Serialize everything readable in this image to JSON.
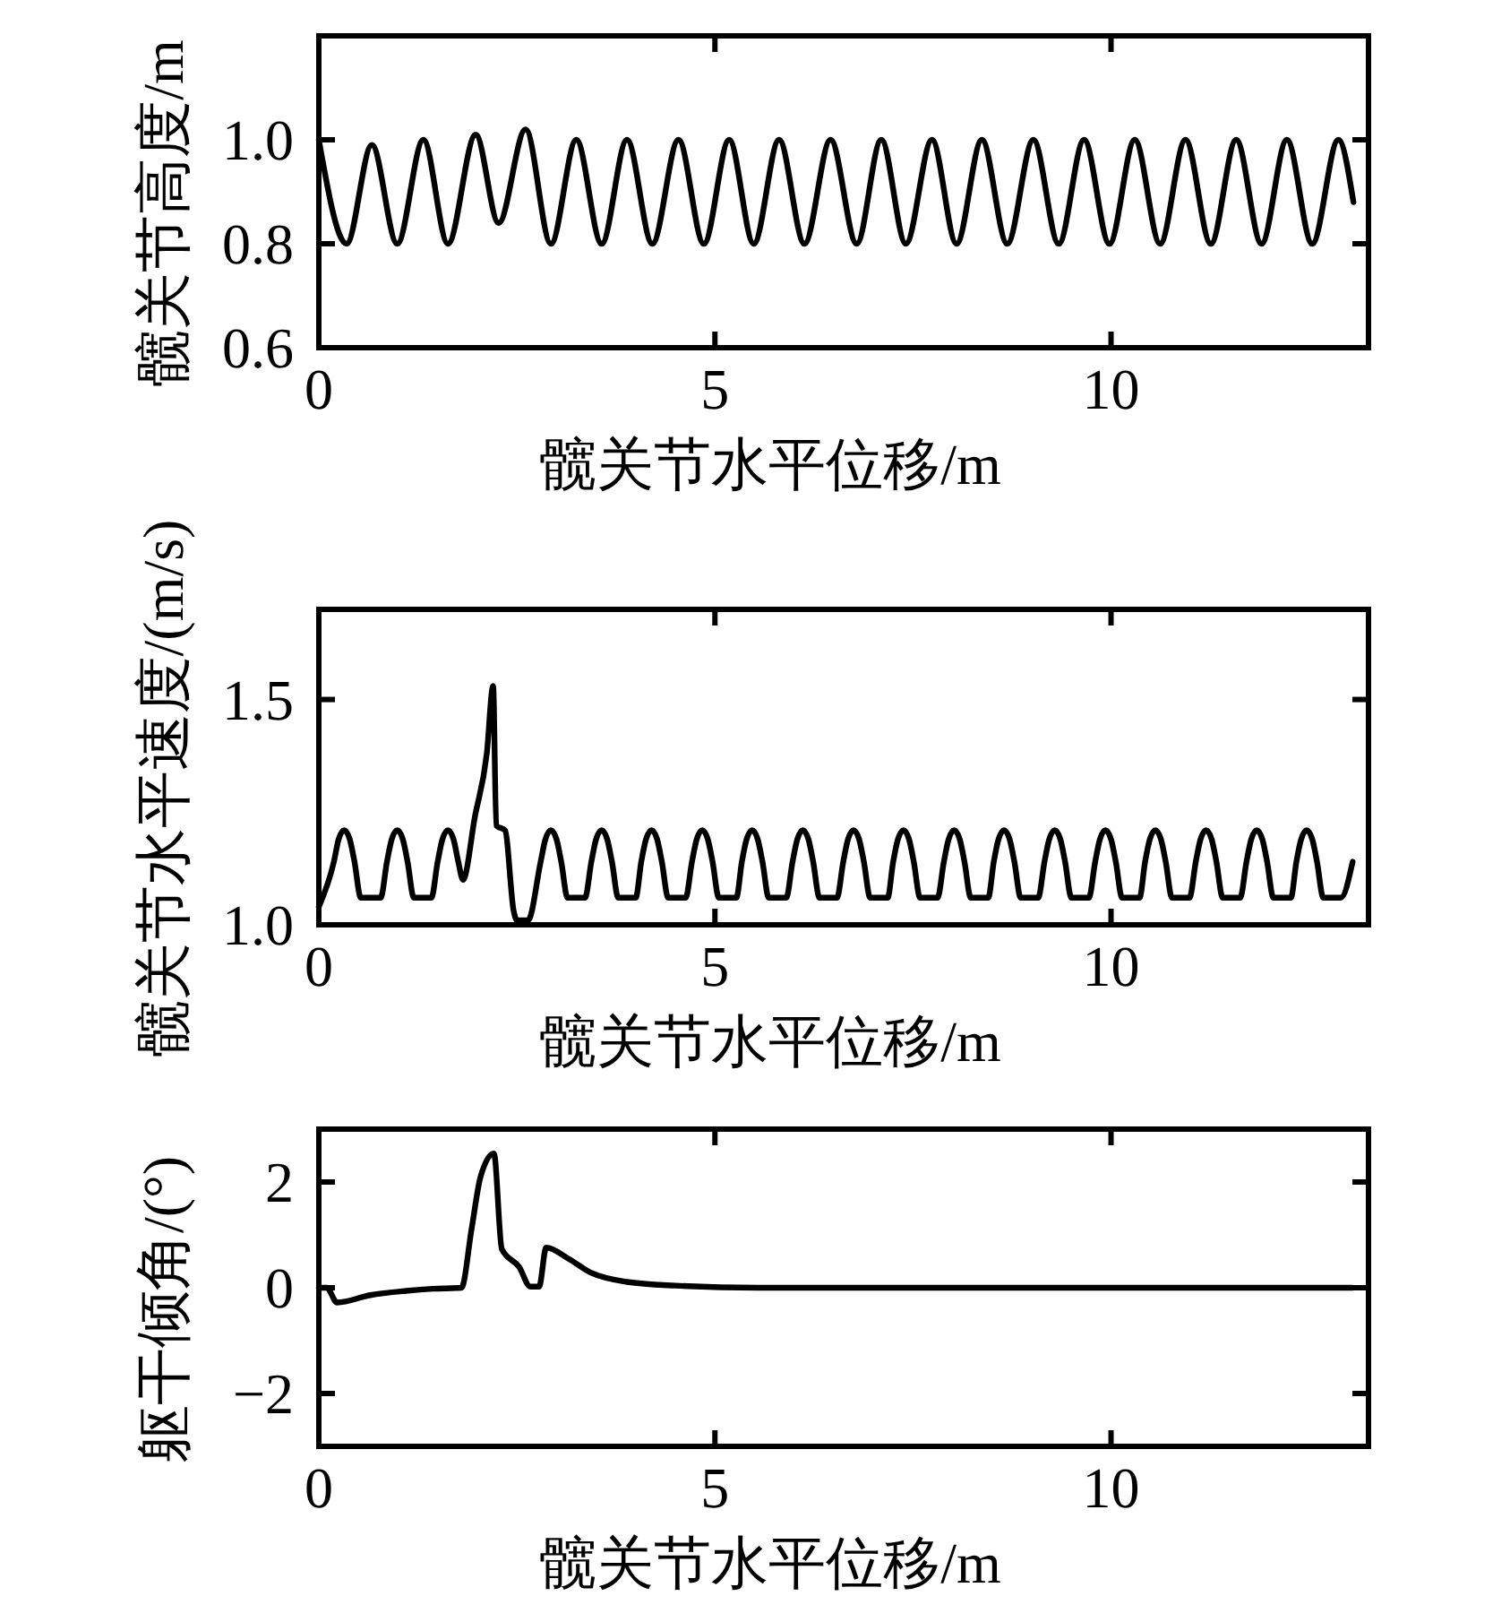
{
  "chart_data": [
    {
      "type": "line",
      "xlabel": "髋关节水平位移/m",
      "ylabel": "髋关节高度/m",
      "xlim": [
        0,
        13.25
      ],
      "ylim": [
        0.6,
        1.2
      ],
      "xticks": [
        0,
        5,
        10
      ],
      "yticks": [
        0.6,
        0.8,
        {
          "value": 1,
          "label": "1.0"
        }
      ],
      "color": "#000000",
      "x": [
        0,
        0.35,
        0.67,
        0.99,
        1.32,
        1.63,
        1.98,
        2.27,
        2.61,
        2.93,
        3.25,
        3.57,
        3.89,
        4.21,
        4.54,
        4.86,
        5.18,
        5.49,
        5.81,
        6.13,
        6.46,
        6.79,
        7.1,
        7.41,
        7.74,
        8.05,
        8.37,
        8.69,
        9.02,
        9.34,
        9.66,
        9.98,
        10.3,
        10.62,
        10.94,
        11.26,
        11.58,
        11.9,
        12.22,
        12.54,
        12.87,
        13.06
      ],
      "values": [
        1,
        0.8,
        0.99,
        0.8,
        1,
        0.8,
        1.01,
        0.84,
        1.02,
        0.8,
        1,
        0.8,
        1,
        0.8,
        1,
        0.8,
        1,
        0.8,
        1,
        0.8,
        1,
        0.8,
        1,
        0.8,
        1,
        0.8,
        1,
        0.8,
        1,
        0.8,
        1,
        0.8,
        1,
        0.8,
        1,
        0.8,
        1,
        0.8,
        1,
        0.8,
        1,
        0.88
      ]
    },
    {
      "type": "line",
      "xlabel": "髋关节水平位移/m",
      "ylabel": "髋关节水平速度/(m/s)",
      "xlim": [
        0,
        13.25
      ],
      "ylim": [
        1,
        1.7
      ],
      "xticks": [
        0,
        5,
        10
      ],
      "yticks": [
        {
          "value": 1,
          "label": "1.0"
        },
        1.5
      ],
      "color": "#000000",
      "x": [
        0,
        0.19,
        0.25,
        0.32,
        0.39,
        0.45,
        0.53,
        0.78,
        0.86,
        0.92,
        0.99,
        1.06,
        1.12,
        1.2,
        1.42,
        1.5,
        1.56,
        1.63,
        1.7,
        1.76,
        1.82,
        1.97,
        2.12,
        2.2,
        2.24,
        2.35,
        2.46,
        2.5,
        2.64,
        2.8,
        2.86,
        2.93,
        3.0,
        3.06,
        3.14,
        3.36,
        3.44,
        3.5,
        3.57,
        3.64,
        3.7,
        3.78,
        4.0,
        4.07,
        4.13,
        4.2,
        4.27,
        4.33,
        4.41,
        4.63,
        4.71,
        4.77,
        4.84,
        4.91,
        4.97,
        5.05,
        5.27,
        5.34,
        5.4,
        5.47,
        5.54,
        5.6,
        5.68,
        5.9,
        5.98,
        6.04,
        6.11,
        6.18,
        6.24,
        6.32,
        6.54,
        6.62,
        6.68,
        6.75,
        6.82,
        6.88,
        6.96,
        7.18,
        7.25,
        7.31,
        7.38,
        7.45,
        7.51,
        7.59,
        7.81,
        7.89,
        7.95,
        8.02,
        8.09,
        8.15,
        8.23,
        8.45,
        8.52,
        8.58,
        8.65,
        8.72,
        8.78,
        8.86,
        9.08,
        9.16,
        9.22,
        9.29,
        9.36,
        9.42,
        9.5,
        9.72,
        9.8,
        9.86,
        9.93,
        10.0,
        10.06,
        10.14,
        10.36,
        10.43,
        10.49,
        10.56,
        10.63,
        10.69,
        10.77,
        10.99,
        11.07,
        11.13,
        11.2,
        11.27,
        11.33,
        11.41,
        11.63,
        11.71,
        11.77,
        11.84,
        11.91,
        11.97,
        12.05,
        12.27,
        12.34,
        12.4,
        12.47,
        12.54,
        12.6,
        12.68,
        12.9,
        13.05
      ],
      "values": [
        1.04,
        1.14,
        1.19,
        1.21,
        1.19,
        1.14,
        1.06,
        1.06,
        1.14,
        1.19,
        1.21,
        1.19,
        1.14,
        1.06,
        1.06,
        1.14,
        1.19,
        1.21,
        1.19,
        1.14,
        1.1,
        1.24,
        1.38,
        1.53,
        1.22,
        1.21,
        1.03,
        1.01,
        1.01,
        1.14,
        1.19,
        1.21,
        1.19,
        1.14,
        1.06,
        1.06,
        1.14,
        1.19,
        1.21,
        1.19,
        1.14,
        1.06,
        1.06,
        1.14,
        1.19,
        1.21,
        1.19,
        1.14,
        1.06,
        1.06,
        1.14,
        1.19,
        1.21,
        1.19,
        1.14,
        1.06,
        1.06,
        1.14,
        1.19,
        1.21,
        1.19,
        1.14,
        1.06,
        1.06,
        1.14,
        1.19,
        1.21,
        1.19,
        1.14,
        1.06,
        1.06,
        1.14,
        1.19,
        1.21,
        1.19,
        1.14,
        1.06,
        1.06,
        1.14,
        1.19,
        1.21,
        1.19,
        1.14,
        1.06,
        1.06,
        1.14,
        1.19,
        1.21,
        1.19,
        1.14,
        1.06,
        1.06,
        1.14,
        1.19,
        1.21,
        1.19,
        1.14,
        1.06,
        1.06,
        1.14,
        1.19,
        1.21,
        1.19,
        1.14,
        1.06,
        1.06,
        1.14,
        1.19,
        1.21,
        1.19,
        1.14,
        1.06,
        1.06,
        1.14,
        1.19,
        1.21,
        1.19,
        1.14,
        1.06,
        1.06,
        1.14,
        1.19,
        1.21,
        1.19,
        1.14,
        1.06,
        1.06,
        1.14,
        1.19,
        1.21,
        1.19,
        1.14,
        1.06,
        1.06,
        1.14,
        1.19,
        1.21,
        1.19,
        1.14,
        1.06,
        1.06,
        1.14
      ]
    },
    {
      "type": "line",
      "xlabel": "髋关节水平位移/m",
      "ylabel": "躯干倾角/(°)",
      "xlim": [
        0,
        13.25
      ],
      "ylim": [
        -3,
        3
      ],
      "xticks": [
        0,
        5,
        10
      ],
      "yticks": [
        -2,
        0,
        2
      ],
      "color": "#000000",
      "x": [
        0,
        0.1,
        0.23,
        0.65,
        1.1,
        1.44,
        1.8,
        1.93,
        2.04,
        2.21,
        2.31,
        2.53,
        2.67,
        2.78,
        2.87,
        3.14,
        3.44,
        3.89,
        4.5,
        5.55,
        13.05
      ],
      "values": [
        0,
        0,
        -0.28,
        -0.14,
        -0.06,
        -0.02,
        0,
        1.13,
        2.09,
        2.54,
        0.73,
        0.39,
        0.02,
        0.02,
        0.76,
        0.56,
        0.28,
        0.11,
        0.04,
        0,
        0
      ]
    }
  ]
}
